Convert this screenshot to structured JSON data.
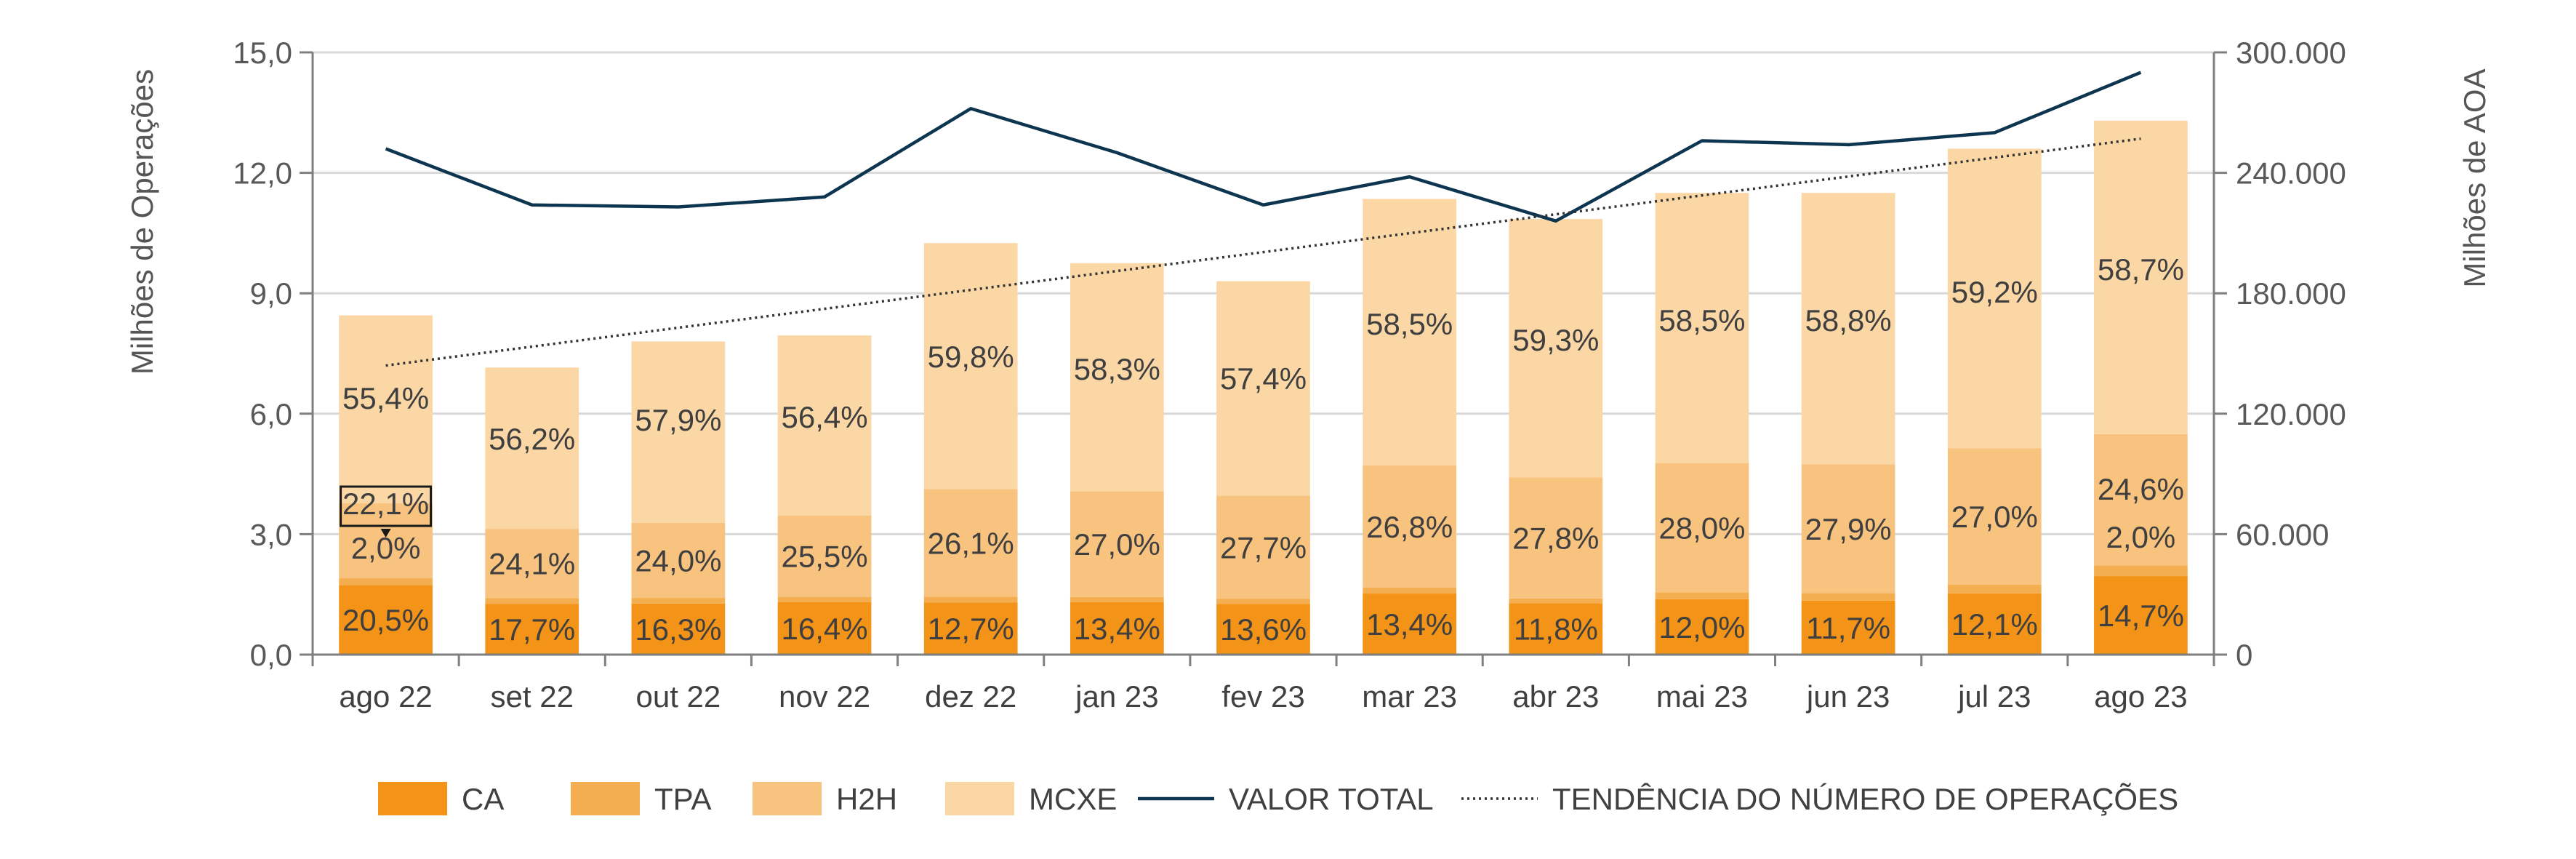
{
  "chart_data": {
    "type": "bar",
    "categories": [
      "ago 22",
      "set 22",
      "out 22",
      "nov 22",
      "dez 22",
      "jan 23",
      "fev 23",
      "mar 23",
      "abr 23",
      "mai 23",
      "jun 23",
      "jul 23",
      "ago 23"
    ],
    "ylabel_left": "Milhões de Operações",
    "ylabel_right": "Milhões de AOA",
    "ylim_left": [
      0,
      15
    ],
    "ylim_right": [
      0,
      300000
    ],
    "yticks_left": [
      "0,0",
      "3,0",
      "6,0",
      "9,0",
      "12,0",
      "15,0"
    ],
    "yticks_right": [
      "0",
      "60.000",
      "120.000",
      "180.000",
      "240.000",
      "300.000"
    ],
    "grid": true,
    "legend_position": "bottom",
    "totals": [
      8.45,
      7.15,
      7.8,
      7.95,
      10.25,
      9.75,
      9.3,
      11.35,
      10.85,
      11.5,
      11.5,
      12.6,
      13.3
    ],
    "series": [
      {
        "name": "CA",
        "color": "#F39317",
        "values": [
          20.5,
          17.7,
          16.3,
          16.4,
          12.7,
          13.4,
          13.6,
          13.4,
          11.8,
          12.0,
          11.7,
          12.1,
          14.7
        ],
        "labels": [
          "20,5%",
          "17,7%",
          "16,3%",
          "16,4%",
          "12,7%",
          "13,4%",
          "13,6%",
          "13,4%",
          "11,8%",
          "12,0%",
          "11,7%",
          "12,1%",
          "14,7%"
        ]
      },
      {
        "name": "TPA",
        "color": "#F5AE4F",
        "values": [
          2.0,
          2.0,
          1.8,
          1.7,
          1.4,
          1.3,
          1.3,
          1.3,
          1.1,
          1.5,
          1.6,
          1.7,
          2.0
        ],
        "labels": [
          "2,0%",
          "",
          "",
          "",
          "",
          "",
          "",
          "",
          "",
          "",
          "",
          "",
          "2,0%"
        ]
      },
      {
        "name": "H2H",
        "color": "#F8C27F",
        "values": [
          22.1,
          24.1,
          24.0,
          25.5,
          26.1,
          27.0,
          27.7,
          26.8,
          27.8,
          28.0,
          27.9,
          27.0,
          24.6
        ],
        "labels": [
          "22,1%",
          "24,1%",
          "24,0%",
          "25,5%",
          "26,1%",
          "27,0%",
          "27,7%",
          "26,8%",
          "27,8%",
          "28,0%",
          "27,9%",
          "27,0%",
          "24,6%"
        ]
      },
      {
        "name": "MCXE",
        "color": "#FBD7A6",
        "values": [
          55.4,
          56.2,
          57.9,
          56.4,
          59.8,
          58.3,
          57.4,
          58.5,
          59.3,
          58.5,
          58.8,
          59.2,
          58.7
        ],
        "labels": [
          "55,4%",
          "56,2%",
          "57,9%",
          "56,4%",
          "59,8%",
          "58,3%",
          "57,4%",
          "58,5%",
          "59,3%",
          "58,5%",
          "58,8%",
          "59,2%",
          "58,7%"
        ]
      }
    ],
    "line_series": {
      "name": "VALOR TOTAL",
      "color": "#0E3550",
      "values": [
        252000,
        224000,
        223000,
        228000,
        272000,
        250000,
        224000,
        238000,
        216000,
        256000,
        254000,
        260000,
        290000
      ]
    },
    "trend_series": {
      "name": "TENDÊNCIA DO NÚMERO DE OPERAÇÕES",
      "color": "#333333",
      "values": [
        7.2,
        12.85
      ]
    }
  }
}
